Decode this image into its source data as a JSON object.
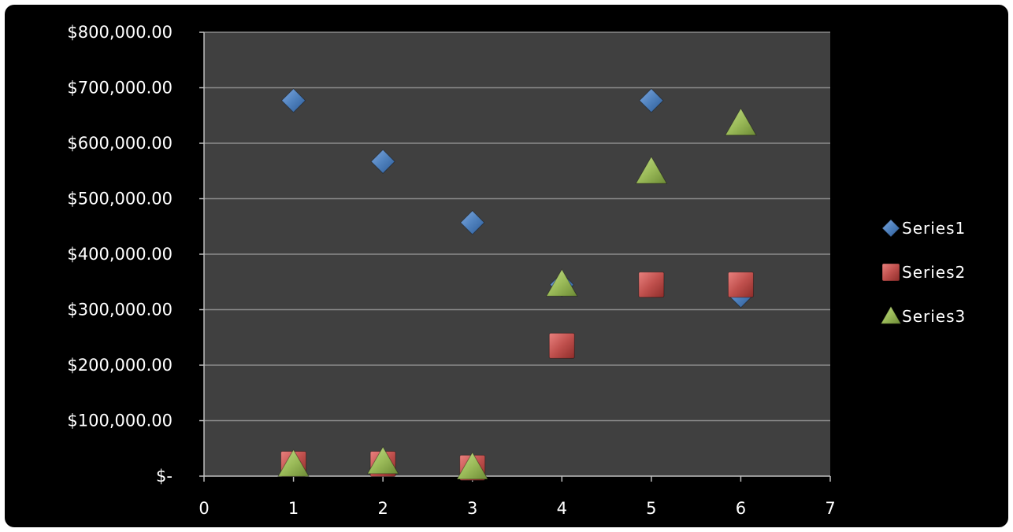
{
  "chart_data": {
    "type": "scatter",
    "title": "",
    "xlabel": "",
    "ylabel": "",
    "xlim": [
      0,
      7
    ],
    "ylim": [
      0,
      800000
    ],
    "x_ticks": [
      0,
      1,
      2,
      3,
      4,
      5,
      6,
      7
    ],
    "x_tick_labels": [
      "0",
      "1",
      "2",
      "3",
      "4",
      "5",
      "6",
      "7"
    ],
    "y_ticks": [
      0,
      100000,
      200000,
      300000,
      400000,
      500000,
      600000,
      700000,
      800000
    ],
    "y_tick_labels": [
      "$-",
      "$100,000.00",
      "$200,000.00",
      "$300,000.00",
      "$400,000.00",
      "$500,000.00",
      "$600,000.00",
      "$700,000.00",
      "$800,000.00"
    ],
    "grid": true,
    "legend_position": "right",
    "plot_background": "#404040",
    "series": [
      {
        "name": "Series1",
        "marker": "diamond",
        "color": "#4f81bd",
        "points": [
          [
            1,
            677000
          ],
          [
            2,
            567000
          ],
          [
            3,
            457000
          ],
          [
            4,
            345000
          ],
          [
            5,
            677000
          ],
          [
            6,
            325000
          ]
        ]
      },
      {
        "name": "Series2",
        "marker": "square",
        "color": "#c0504d",
        "points": [
          [
            1,
            22000
          ],
          [
            2,
            22000
          ],
          [
            3,
            15000
          ],
          [
            4,
            235000
          ],
          [
            5,
            345000
          ],
          [
            6,
            345000
          ]
        ]
      },
      {
        "name": "Series3",
        "marker": "triangle",
        "color": "#9bbb59",
        "points": [
          [
            1,
            20000
          ],
          [
            2,
            25000
          ],
          [
            3,
            15000
          ],
          [
            4,
            345000
          ],
          [
            5,
            548000
          ],
          [
            6,
            635000
          ]
        ]
      }
    ]
  }
}
